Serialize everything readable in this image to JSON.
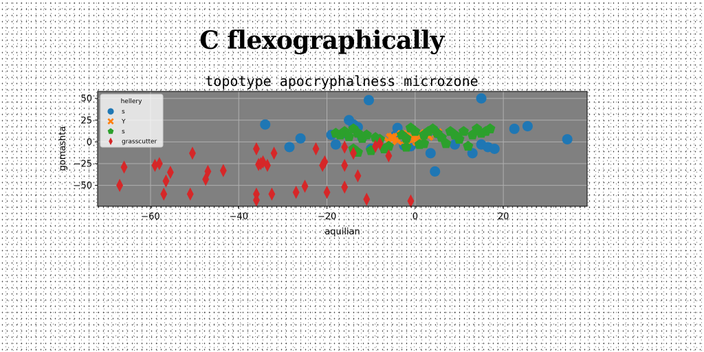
{
  "figure_title": "C flexographically",
  "chart_data": {
    "type": "scatter",
    "title": "topotype apocryphalness microzone",
    "xlabel": "aquilian",
    "ylabel": "gomashta",
    "xlim": [
      -72,
      39
    ],
    "ylim": [
      -74,
      58
    ],
    "xticks": [
      -60,
      -40,
      -20,
      0,
      20
    ],
    "yticks": [
      50,
      25,
      0,
      -25,
      -50
    ],
    "xtick_labels": [
      "−60",
      "−40",
      "−20",
      "0",
      "20"
    ],
    "ytick_labels": [
      "50",
      "25",
      "0",
      "−25",
      "−50"
    ],
    "grid": true,
    "background": "#808080",
    "legend": {
      "title": "hellery",
      "placement": "top-left"
    },
    "series": [
      {
        "name": "s",
        "color": "#1f77b4",
        "marker": "circle",
        "points": [
          [
            -10.5,
            48
          ],
          [
            -34,
            20
          ],
          [
            -26,
            4
          ],
          [
            -28.5,
            -6
          ],
          [
            -19,
            8
          ],
          [
            -18,
            -3
          ],
          [
            -15,
            25
          ],
          [
            -14,
            20
          ],
          [
            -13,
            17
          ],
          [
            -16,
            10
          ],
          [
            -12,
            5
          ],
          [
            -10,
            -8
          ],
          [
            -4,
            16
          ],
          [
            -4.5,
            7
          ],
          [
            -2.5,
            -4
          ],
          [
            -1,
            -5
          ],
          [
            3.5,
            -13
          ],
          [
            4.5,
            -34
          ],
          [
            5,
            10
          ],
          [
            9,
            -3
          ],
          [
            13,
            -13
          ],
          [
            15,
            -3
          ],
          [
            15,
            50
          ],
          [
            16.5,
            -6
          ],
          [
            18,
            -8
          ],
          [
            22.5,
            15
          ],
          [
            25.5,
            18
          ],
          [
            34.5,
            3
          ]
        ]
      },
      {
        "name": "Y",
        "color": "#ff7f0e",
        "marker": "x",
        "points": [
          [
            -5,
            5
          ],
          [
            -4,
            2
          ],
          [
            -3,
            8
          ],
          [
            -2,
            3
          ],
          [
            -1,
            6
          ],
          [
            0,
            4
          ],
          [
            1,
            9
          ],
          [
            2,
            3
          ],
          [
            3,
            7
          ],
          [
            4,
            12
          ],
          [
            5,
            10
          ],
          [
            -6,
            0
          ],
          [
            -5.5,
            4.5
          ],
          [
            0.5,
            1
          ]
        ]
      },
      {
        "name": "s",
        "color": "#2ca02c",
        "marker": "pentagon",
        "points": [
          [
            -18,
            10
          ],
          [
            -17,
            8
          ],
          [
            -16,
            12
          ],
          [
            -15,
            6
          ],
          [
            -14,
            15
          ],
          [
            -13,
            10
          ],
          [
            -12,
            4
          ],
          [
            -11,
            8
          ],
          [
            -10,
            -10
          ],
          [
            -9,
            5
          ],
          [
            -8,
            3
          ],
          [
            -7,
            -8
          ],
          [
            -6,
            -5
          ],
          [
            -3,
            8
          ],
          [
            -2,
            4
          ],
          [
            -1,
            16
          ],
          [
            0,
            12
          ],
          [
            1,
            -3
          ],
          [
            2,
            8
          ],
          [
            3,
            12
          ],
          [
            4,
            15
          ],
          [
            5,
            10
          ],
          [
            6,
            5
          ],
          [
            7,
            -2
          ],
          [
            8,
            12
          ],
          [
            9,
            8
          ],
          [
            10,
            3
          ],
          [
            11,
            12
          ],
          [
            12,
            -5
          ],
          [
            13,
            8
          ],
          [
            14,
            15
          ],
          [
            15,
            10
          ],
          [
            16,
            12
          ],
          [
            17,
            15
          ],
          [
            -14,
            -8
          ],
          [
            -13,
            -12
          ],
          [
            -2,
            -6
          ],
          [
            2,
            -2
          ]
        ]
      },
      {
        "name": "grasscutter",
        "color": "#d62728",
        "marker": "thin_diamond",
        "points": [
          [
            -67,
            -50
          ],
          [
            -66,
            -29
          ],
          [
            -59,
            -27
          ],
          [
            -58,
            -25
          ],
          [
            -57,
            -60
          ],
          [
            -56.5,
            -45
          ],
          [
            -55.5,
            -35
          ],
          [
            -51,
            -60
          ],
          [
            -50.5,
            -13
          ],
          [
            -47.5,
            -43
          ],
          [
            -47,
            -34
          ],
          [
            -43.5,
            -33
          ],
          [
            -36,
            -8
          ],
          [
            -36,
            -60
          ],
          [
            -36,
            -67
          ],
          [
            -35.5,
            -26
          ],
          [
            -35,
            -25
          ],
          [
            -34.5,
            -23
          ],
          [
            -33.5,
            -27
          ],
          [
            -32.5,
            -60
          ],
          [
            -32,
            -13
          ],
          [
            -27,
            -58
          ],
          [
            -25,
            -51
          ],
          [
            -22.5,
            -8
          ],
          [
            -21,
            -27
          ],
          [
            -20.5,
            -23
          ],
          [
            -20,
            -58
          ],
          [
            -16,
            -6
          ],
          [
            -16,
            -27
          ],
          [
            -16,
            -52
          ],
          [
            -14,
            -13
          ],
          [
            -13,
            -39
          ],
          [
            -11,
            -66
          ],
          [
            -9,
            -5
          ],
          [
            -8,
            -2
          ],
          [
            -6,
            -16
          ],
          [
            -1,
            -68
          ]
        ]
      }
    ]
  }
}
